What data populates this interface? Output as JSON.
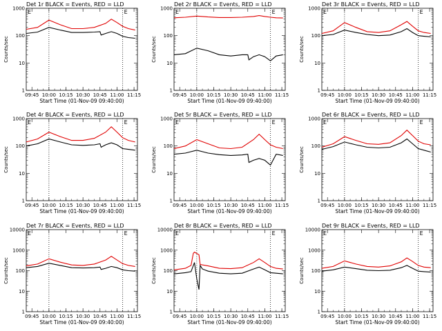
{
  "figure": {
    "series_legend": {
      "black": "Events",
      "red": "LLD"
    },
    "xlabel": "Start Time (01-Nov-09 09:40:00)",
    "ylabel": "Counts/sec",
    "x_ticks": [
      "09:45",
      "10:00",
      "10:15",
      "10:30",
      "10:45",
      "11:00",
      "11:15"
    ],
    "y_ticks": [
      "1",
      "10",
      "100",
      "1000"
    ],
    "y_ticks_large": [
      "1",
      "10",
      "100",
      "1000",
      "10000"
    ],
    "corner_label": "E",
    "colors": {
      "events": "#000000",
      "lld": "#e00000",
      "dotted": "#000000"
    },
    "dotted_markers": [
      "10:00",
      "11:05"
    ]
  },
  "chart_data": [
    {
      "type": "line",
      "title": "Det 1r BLACK = Events, RED = LLD",
      "yscale": "log",
      "xlim": [
        "09:40",
        "11:18"
      ],
      "ylim": [
        1,
        1000
      ],
      "series": [
        {
          "name": "Events",
          "color": "#000000",
          "x": [
            "09:40",
            "09:50",
            "10:00",
            "10:10",
            "10:20",
            "10:30",
            "10:40",
            "10:45",
            "10:46",
            "10:50",
            "10:55",
            "11:00",
            "11:05",
            "11:10",
            "11:16"
          ],
          "values": [
            120,
            135,
            200,
            160,
            130,
            130,
            135,
            140,
            105,
            120,
            140,
            120,
            95,
            85,
            80
          ]
        },
        {
          "name": "LLD",
          "color": "#e00000",
          "x": [
            "09:40",
            "09:50",
            "10:00",
            "10:10",
            "10:20",
            "10:30",
            "10:40",
            "10:50",
            "10:55",
            "11:00",
            "11:05",
            "11:10",
            "11:16"
          ],
          "values": [
            170,
            200,
            370,
            250,
            180,
            180,
            200,
            280,
            400,
            300,
            220,
            180,
            160
          ]
        }
      ]
    },
    {
      "type": "line",
      "title": "Det 2r BLACK = Events, RED = LLD",
      "yscale": "log",
      "xlim": [
        "09:40",
        "11:18"
      ],
      "ylim": [
        1,
        1000
      ],
      "series": [
        {
          "name": "Events",
          "color": "#000000",
          "x": [
            "09:40",
            "09:50",
            "10:00",
            "10:10",
            "10:20",
            "10:30",
            "10:40",
            "10:45",
            "10:46",
            "10:50",
            "10:55",
            "11:00",
            "11:05",
            "11:10",
            "11:16"
          ],
          "values": [
            20,
            22,
            35,
            28,
            20,
            18,
            20,
            20,
            13,
            17,
            20,
            17,
            12,
            18,
            20
          ]
        },
        {
          "name": "LLD",
          "color": "#e00000",
          "x": [
            "09:40",
            "09:50",
            "10:00",
            "10:10",
            "10:20",
            "10:30",
            "10:40",
            "10:50",
            "10:55",
            "11:00",
            "11:05",
            "11:10",
            "11:16"
          ],
          "values": [
            450,
            470,
            520,
            480,
            460,
            460,
            470,
            500,
            540,
            500,
            470,
            450,
            440
          ]
        }
      ]
    },
    {
      "type": "line",
      "title": "Det 3r BLACK = Events, RED = LLD",
      "yscale": "log",
      "xlim": [
        "09:40",
        "11:18"
      ],
      "ylim": [
        1,
        1000
      ],
      "series": [
        {
          "name": "Events",
          "color": "#000000",
          "x": [
            "09:40",
            "09:50",
            "10:00",
            "10:10",
            "10:20",
            "10:30",
            "10:40",
            "10:50",
            "10:55",
            "11:00",
            "11:05",
            "11:10",
            "11:16"
          ],
          "values": [
            100,
            110,
            160,
            130,
            110,
            100,
            105,
            140,
            180,
            130,
            100,
            95,
            90
          ]
        },
        {
          "name": "LLD",
          "color": "#e00000",
          "x": [
            "09:40",
            "09:50",
            "10:00",
            "10:10",
            "10:20",
            "10:30",
            "10:40",
            "10:50",
            "10:55",
            "11:00",
            "11:05",
            "11:10",
            "11:16"
          ],
          "values": [
            120,
            150,
            300,
            200,
            140,
            130,
            150,
            250,
            330,
            220,
            150,
            130,
            120
          ]
        }
      ]
    },
    {
      "type": "line",
      "title": "Det 4r BLACK = Events, RED = LLD",
      "yscale": "log",
      "xlim": [
        "09:40",
        "11:18"
      ],
      "ylim": [
        1,
        1000
      ],
      "series": [
        {
          "name": "Events",
          "color": "#000000",
          "x": [
            "09:40",
            "09:50",
            "10:00",
            "10:10",
            "10:20",
            "10:30",
            "10:40",
            "10:45",
            "10:46",
            "10:50",
            "10:55",
            "11:00",
            "11:05",
            "11:10",
            "11:16"
          ],
          "values": [
            100,
            120,
            180,
            140,
            110,
            105,
            110,
            120,
            90,
            110,
            130,
            110,
            80,
            75,
            70
          ]
        },
        {
          "name": "LLD",
          "color": "#e00000",
          "x": [
            "09:40",
            "09:50",
            "10:00",
            "10:10",
            "10:20",
            "10:30",
            "10:40",
            "10:50",
            "10:55",
            "11:00",
            "11:05",
            "11:10",
            "11:16"
          ],
          "values": [
            140,
            180,
            320,
            220,
            160,
            160,
            190,
            320,
            500,
            320,
            200,
            160,
            140
          ]
        }
      ]
    },
    {
      "type": "line",
      "title": "Det 5r BLACK = Events, RED = LLD",
      "yscale": "log",
      "xlim": [
        "09:40",
        "11:18"
      ],
      "ylim": [
        1,
        1000
      ],
      "series": [
        {
          "name": "Events",
          "color": "#000000",
          "x": [
            "09:40",
            "09:50",
            "10:00",
            "10:10",
            "10:20",
            "10:30",
            "10:40",
            "10:45",
            "10:46",
            "10:50",
            "10:55",
            "11:00",
            "11:05",
            "11:10",
            "11:16"
          ],
          "values": [
            50,
            55,
            70,
            55,
            48,
            45,
            47,
            50,
            25,
            30,
            35,
            30,
            20,
            50,
            45
          ]
        },
        {
          "name": "LLD",
          "color": "#e00000",
          "x": [
            "09:40",
            "09:50",
            "10:00",
            "10:10",
            "10:20",
            "10:30",
            "10:40",
            "10:50",
            "10:55",
            "11:00",
            "11:05",
            "11:10",
            "11:16"
          ],
          "values": [
            80,
            100,
            170,
            120,
            85,
            80,
            90,
            170,
            270,
            170,
            110,
            90,
            80
          ]
        }
      ]
    },
    {
      "type": "line",
      "title": "Det 6r BLACK = Events, RED = LLD",
      "yscale": "log",
      "xlim": [
        "09:40",
        "11:18"
      ],
      "ylim": [
        1,
        1000
      ],
      "series": [
        {
          "name": "Events",
          "color": "#000000",
          "x": [
            "09:40",
            "09:50",
            "10:00",
            "10:10",
            "10:20",
            "10:30",
            "10:40",
            "10:50",
            "10:55",
            "11:00",
            "11:05",
            "11:10",
            "11:16"
          ],
          "values": [
            75,
            95,
            140,
            110,
            90,
            85,
            90,
            130,
            180,
            120,
            80,
            70,
            60
          ]
        },
        {
          "name": "LLD",
          "color": "#e00000",
          "x": [
            "09:40",
            "09:50",
            "10:00",
            "10:10",
            "10:20",
            "10:30",
            "10:40",
            "10:50",
            "10:55",
            "11:00",
            "11:05",
            "11:10",
            "11:16"
          ],
          "values": [
            90,
            120,
            220,
            160,
            120,
            115,
            130,
            240,
            380,
            240,
            150,
            120,
            110
          ]
        }
      ]
    },
    {
      "type": "line",
      "title": "Det 7r BLACK = Events, RED = LLD",
      "yscale": "log",
      "xlim": [
        "09:40",
        "11:18"
      ],
      "ylim": [
        1,
        10000
      ],
      "series": [
        {
          "name": "Events",
          "color": "#000000",
          "x": [
            "09:40",
            "09:50",
            "10:00",
            "10:10",
            "10:20",
            "10:30",
            "10:40",
            "10:45",
            "10:46",
            "10:50",
            "10:55",
            "11:00",
            "11:05",
            "11:10",
            "11:16"
          ],
          "values": [
            140,
            160,
            230,
            180,
            140,
            135,
            140,
            150,
            115,
            130,
            160,
            140,
            110,
            100,
            95
          ]
        },
        {
          "name": "LLD",
          "color": "#e00000",
          "x": [
            "09:40",
            "09:50",
            "10:00",
            "10:10",
            "10:20",
            "10:30",
            "10:40",
            "10:50",
            "10:55",
            "11:00",
            "11:05",
            "11:10",
            "11:16"
          ],
          "values": [
            170,
            210,
            380,
            260,
            190,
            180,
            210,
            330,
            500,
            330,
            220,
            180,
            160
          ]
        }
      ]
    },
    {
      "type": "line",
      "title": "Det 8r BLACK = Events, RED = LLD",
      "yscale": "log",
      "xlim": [
        "09:40",
        "11:18"
      ],
      "ylim": [
        1,
        10000
      ],
      "series": [
        {
          "name": "Events",
          "color": "#000000",
          "x": [
            "09:40",
            "09:50",
            "09:55",
            "09:58",
            "10:00",
            "10:02",
            "10:03",
            "10:05",
            "10:10",
            "10:20",
            "10:30",
            "10:40",
            "10:50",
            "10:55",
            "11:00",
            "11:05",
            "11:10",
            "11:16"
          ],
          "values": [
            70,
            80,
            90,
            250,
            40,
            12,
            180,
            120,
            95,
            75,
            70,
            75,
            120,
            150,
            110,
            80,
            75,
            70
          ]
        },
        {
          "name": "LLD",
          "color": "#e00000",
          "x": [
            "09:40",
            "09:50",
            "09:55",
            "09:57",
            "09:58",
            "10:02",
            "10:03",
            "10:10",
            "10:20",
            "10:30",
            "10:40",
            "10:50",
            "10:55",
            "11:00",
            "11:05",
            "11:10",
            "11:16"
          ],
          "values": [
            110,
            130,
            180,
            700,
            800,
            600,
            200,
            170,
            130,
            125,
            140,
            250,
            380,
            250,
            160,
            130,
            120
          ]
        }
      ]
    },
    {
      "type": "line",
      "title": "Det 9r BLACK = Events, RED = LLD",
      "yscale": "log",
      "xlim": [
        "09:40",
        "11:18"
      ],
      "ylim": [
        1,
        10000
      ],
      "series": [
        {
          "name": "Events",
          "color": "#000000",
          "x": [
            "09:40",
            "09:50",
            "10:00",
            "10:10",
            "10:20",
            "10:30",
            "10:40",
            "10:50",
            "10:55",
            "11:00",
            "11:05",
            "11:10",
            "11:16"
          ],
          "values": [
            95,
            110,
            150,
            125,
            105,
            100,
            105,
            140,
            180,
            130,
            95,
            90,
            85
          ]
        },
        {
          "name": "LLD",
          "color": "#e00000",
          "x": [
            "09:40",
            "09:50",
            "10:00",
            "10:10",
            "10:20",
            "10:30",
            "10:40",
            "10:50",
            "10:55",
            "11:00",
            "11:05",
            "11:10",
            "11:16"
          ],
          "values": [
            130,
            160,
            300,
            210,
            160,
            150,
            170,
            270,
            420,
            280,
            180,
            150,
            140
          ]
        }
      ]
    }
  ]
}
